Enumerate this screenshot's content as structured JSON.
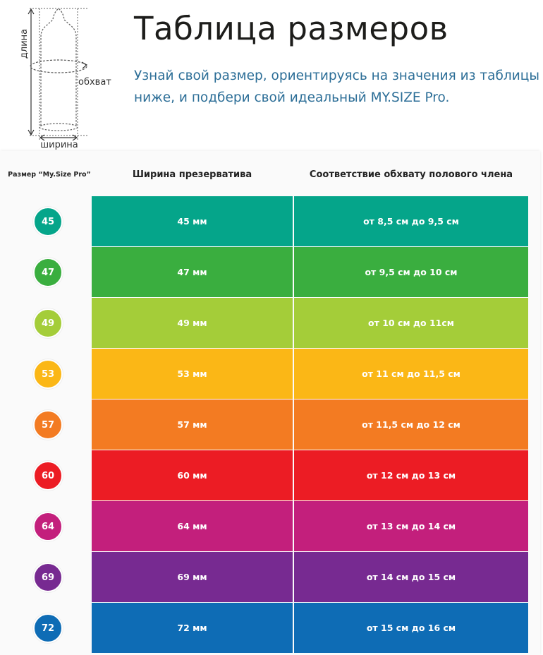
{
  "header": {
    "title": "Таблица размеров",
    "subtitle": "Узнай свой размер, ориентируясь на значения из таблицы ниже, и подбери свой идеальный MY.SIZE Pro."
  },
  "diagram": {
    "label_length": "длина",
    "label_girth": "обхват",
    "label_width": "ширина"
  },
  "table": {
    "columns": [
      "Размер “My.Size Pro”",
      "Ширина презерватива",
      "Соответствие обхвату полового члена"
    ],
    "rows": [
      {
        "size": "45",
        "width": "45 мм",
        "girth": "от 8,5 см до 9,5 см",
        "color": "#05a58a",
        "badge_color": "#05a58a"
      },
      {
        "size": "47",
        "width": "47 мм",
        "girth": "от 9,5 см до 10 см",
        "color": "#3aae3f",
        "badge_color": "#3aae3f"
      },
      {
        "size": "49",
        "width": "49 мм",
        "girth": "от 10 см до 11см",
        "color": "#a4cd39",
        "badge_color": "#a4cd39"
      },
      {
        "size": "53",
        "width": "53 мм",
        "girth": "от 11 см до 11,5 см",
        "color": "#fbb716",
        "badge_color": "#fbb716"
      },
      {
        "size": "57",
        "width": "57 мм",
        "girth": "от 11,5 см до 12 см",
        "color": "#f37b22",
        "badge_color": "#f37b22"
      },
      {
        "size": "60",
        "width": "60 мм",
        "girth": "от 12 см до 13 см",
        "color": "#ec1c24",
        "badge_color": "#ec1c24"
      },
      {
        "size": "64",
        "width": "64 мм",
        "girth": "от 13 см до 14 см",
        "color": "#c31f7c",
        "badge_color": "#c31f7c"
      },
      {
        "size": "69",
        "width": "69 мм",
        "girth": "от 14 см до 15 см",
        "color": "#772a91",
        "badge_color": "#772a91"
      },
      {
        "size": "72",
        "width": "72 мм",
        "girth": "от 15 см до 16 см",
        "color": "#0e6cb5",
        "badge_color": "#0e6cb5"
      }
    ]
  }
}
